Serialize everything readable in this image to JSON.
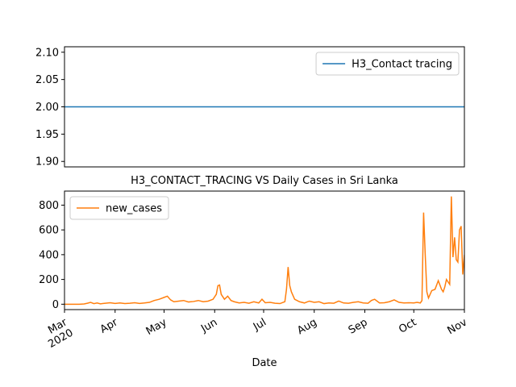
{
  "chart_data": [
    {
      "type": "line",
      "x": [
        0,
        245
      ],
      "series": [
        {
          "name": "H3_Contact tracing",
          "color": "#1f77b4",
          "values": [
            2,
            2
          ]
        }
      ],
      "xlim": [
        0,
        245
      ],
      "ylim": [
        1.89,
        2.11
      ],
      "yticks": [
        {
          "value": 1.9,
          "label": "1.90"
        },
        {
          "value": 1.95,
          "label": "1.95"
        },
        {
          "value": 2.0,
          "label": "2.00"
        },
        {
          "value": 2.05,
          "label": "2.05"
        },
        {
          "value": 2.1,
          "label": "2.10"
        }
      ],
      "legend": "upper right"
    },
    {
      "type": "line",
      "title": "H3_CONTACT_TRACING VS Daily Cases in Sri Lanka",
      "x_label": "Date",
      "x": [
        0,
        3,
        6,
        9,
        12,
        14,
        16,
        18,
        20,
        22,
        25,
        28,
        31,
        34,
        37,
        40,
        43,
        46,
        49,
        52,
        55,
        58,
        61,
        63,
        65,
        67,
        70,
        73,
        76,
        79,
        82,
        85,
        88,
        91,
        93,
        94,
        95,
        96,
        98,
        100,
        102,
        104,
        107,
        110,
        113,
        116,
        119,
        121,
        123,
        126,
        129,
        132,
        135,
        136,
        137,
        138,
        139,
        141,
        144,
        147,
        150,
        153,
        156,
        159,
        162,
        165,
        168,
        171,
        174,
        177,
        180,
        183,
        186,
        188,
        190,
        193,
        196,
        199,
        202,
        205,
        208,
        211,
        214,
        216,
        218,
        219,
        220,
        221,
        222,
        223,
        225,
        227,
        229,
        231,
        232,
        233,
        234,
        236,
        237,
        238,
        239,
        240,
        241,
        242,
        243,
        244,
        245
      ],
      "series": [
        {
          "name": "new_cases",
          "color": "#ff7f0e",
          "values": [
            0,
            0,
            0,
            0,
            2,
            8,
            15,
            5,
            10,
            3,
            8,
            12,
            6,
            10,
            5,
            8,
            12,
            6,
            10,
            15,
            30,
            40,
            55,
            65,
            35,
            20,
            25,
            30,
            18,
            22,
            30,
            20,
            25,
            40,
            80,
            150,
            155,
            80,
            40,
            65,
            30,
            20,
            10,
            15,
            8,
            20,
            10,
            40,
            12,
            15,
            8,
            5,
            20,
            120,
            300,
            150,
            100,
            40,
            20,
            10,
            25,
            15,
            20,
            5,
            10,
            8,
            25,
            10,
            8,
            15,
            20,
            10,
            8,
            30,
            40,
            10,
            12,
            20,
            35,
            15,
            10,
            12,
            10,
            15,
            10,
            30,
            740,
            400,
            100,
            50,
            110,
            120,
            190,
            120,
            100,
            140,
            200,
            160,
            870,
            380,
            540,
            360,
            340,
            600,
            630,
            240,
            400
          ]
        }
      ],
      "xlim": [
        0,
        245
      ],
      "xticks": [
        {
          "value": 0,
          "label": "Mar\n2020"
        },
        {
          "value": 31,
          "label": "Apr"
        },
        {
          "value": 61,
          "label": "May"
        },
        {
          "value": 92,
          "label": "Jun"
        },
        {
          "value": 122,
          "label": "Jul"
        },
        {
          "value": 153,
          "label": "Aug"
        },
        {
          "value": 184,
          "label": "Sep"
        },
        {
          "value": 214,
          "label": "Oct"
        },
        {
          "value": 245,
          "label": "Nov"
        }
      ],
      "ylim": [
        -43.5,
        913.5
      ],
      "yticks": [
        0,
        200,
        400,
        600,
        800
      ],
      "legend": "upper left"
    }
  ]
}
